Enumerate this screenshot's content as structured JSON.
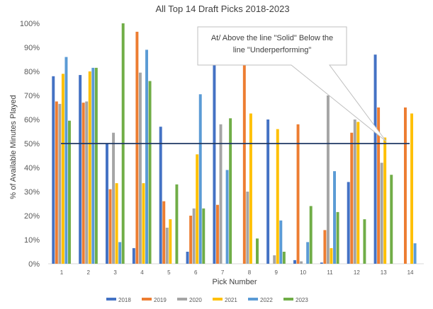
{
  "chart_data": {
    "type": "bar",
    "title": "All Top 14 Draft Picks 2018-2023",
    "xlabel": "Pick Number",
    "ylabel": "% of Available Minutes Played",
    "categories": [
      "1",
      "2",
      "3",
      "4",
      "5",
      "6",
      "7",
      "8",
      "9",
      "10",
      "11",
      "12",
      "13",
      "14"
    ],
    "ylim": [
      0,
      100
    ],
    "yticks": [
      "0%",
      "10%",
      "20%",
      "30%",
      "40%",
      "50%",
      "60%",
      "70%",
      "80%",
      "90%",
      "100%"
    ],
    "grid": false,
    "legend_position": "bottom",
    "reference_line": {
      "value": 50,
      "color": "#1f3864"
    },
    "series": [
      {
        "name": "2018",
        "color": "#4472c4",
        "values": [
          78,
          78.5,
          50,
          6.5,
          57,
          5,
          83,
          0,
          60,
          1.5,
          0.5,
          34,
          87,
          0
        ]
      },
      {
        "name": "2019",
        "color": "#ed7d31",
        "values": [
          67.5,
          67,
          31,
          96.5,
          26,
          20,
          24.5,
          82.5,
          0,
          58,
          14,
          54.5,
          65,
          65
        ]
      },
      {
        "name": "2020",
        "color": "#a5a5a5",
        "values": [
          66.5,
          67.5,
          54.5,
          79.5,
          15,
          23,
          58,
          30,
          3.5,
          1,
          70,
          60,
          42,
          0
        ]
      },
      {
        "name": "2021",
        "color": "#ffc000",
        "values": [
          79,
          80,
          33.5,
          33.5,
          18.5,
          45.5,
          0,
          62.5,
          56,
          0,
          6.5,
          59,
          52.5,
          62.5
        ]
      },
      {
        "name": "2022",
        "color": "#5b9bd5",
        "values": [
          86,
          81.5,
          9,
          89,
          0,
          70.5,
          39,
          0,
          18,
          9,
          38.5,
          0,
          0,
          8.5
        ]
      },
      {
        "name": "2023",
        "color": "#70ad47",
        "values": [
          59.5,
          81.5,
          100,
          76,
          33,
          23,
          60.5,
          10.5,
          5,
          24,
          21.5,
          18.5,
          37,
          0
        ]
      }
    ],
    "annotation": {
      "text_line1": "At/ Above the line \"Solid\"   Below the",
      "text_line2": "line \"Underperforming\""
    }
  }
}
